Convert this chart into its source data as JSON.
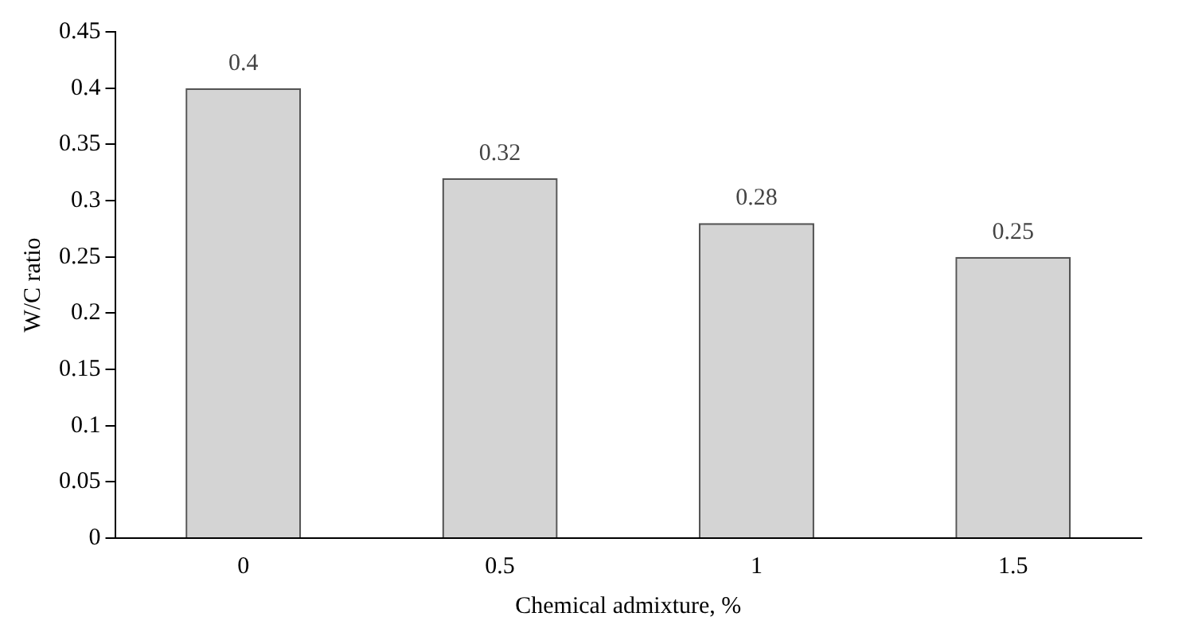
{
  "chart_data": {
    "type": "bar",
    "xlabel": "Chemical admixture, %",
    "ylabel": "W/C ratio",
    "categories": [
      "0",
      "0.5",
      "1",
      "1.5"
    ],
    "values": [
      0.4,
      0.32,
      0.28,
      0.25
    ],
    "color": "#d4d4d4",
    "ylim": [
      0,
      0.45
    ],
    "yticks": [
      0,
      0.05,
      0.1,
      0.15,
      0.2,
      0.25,
      0.3,
      0.35,
      0.4,
      0.45
    ],
    "grid": false,
    "data_labels": true
  }
}
